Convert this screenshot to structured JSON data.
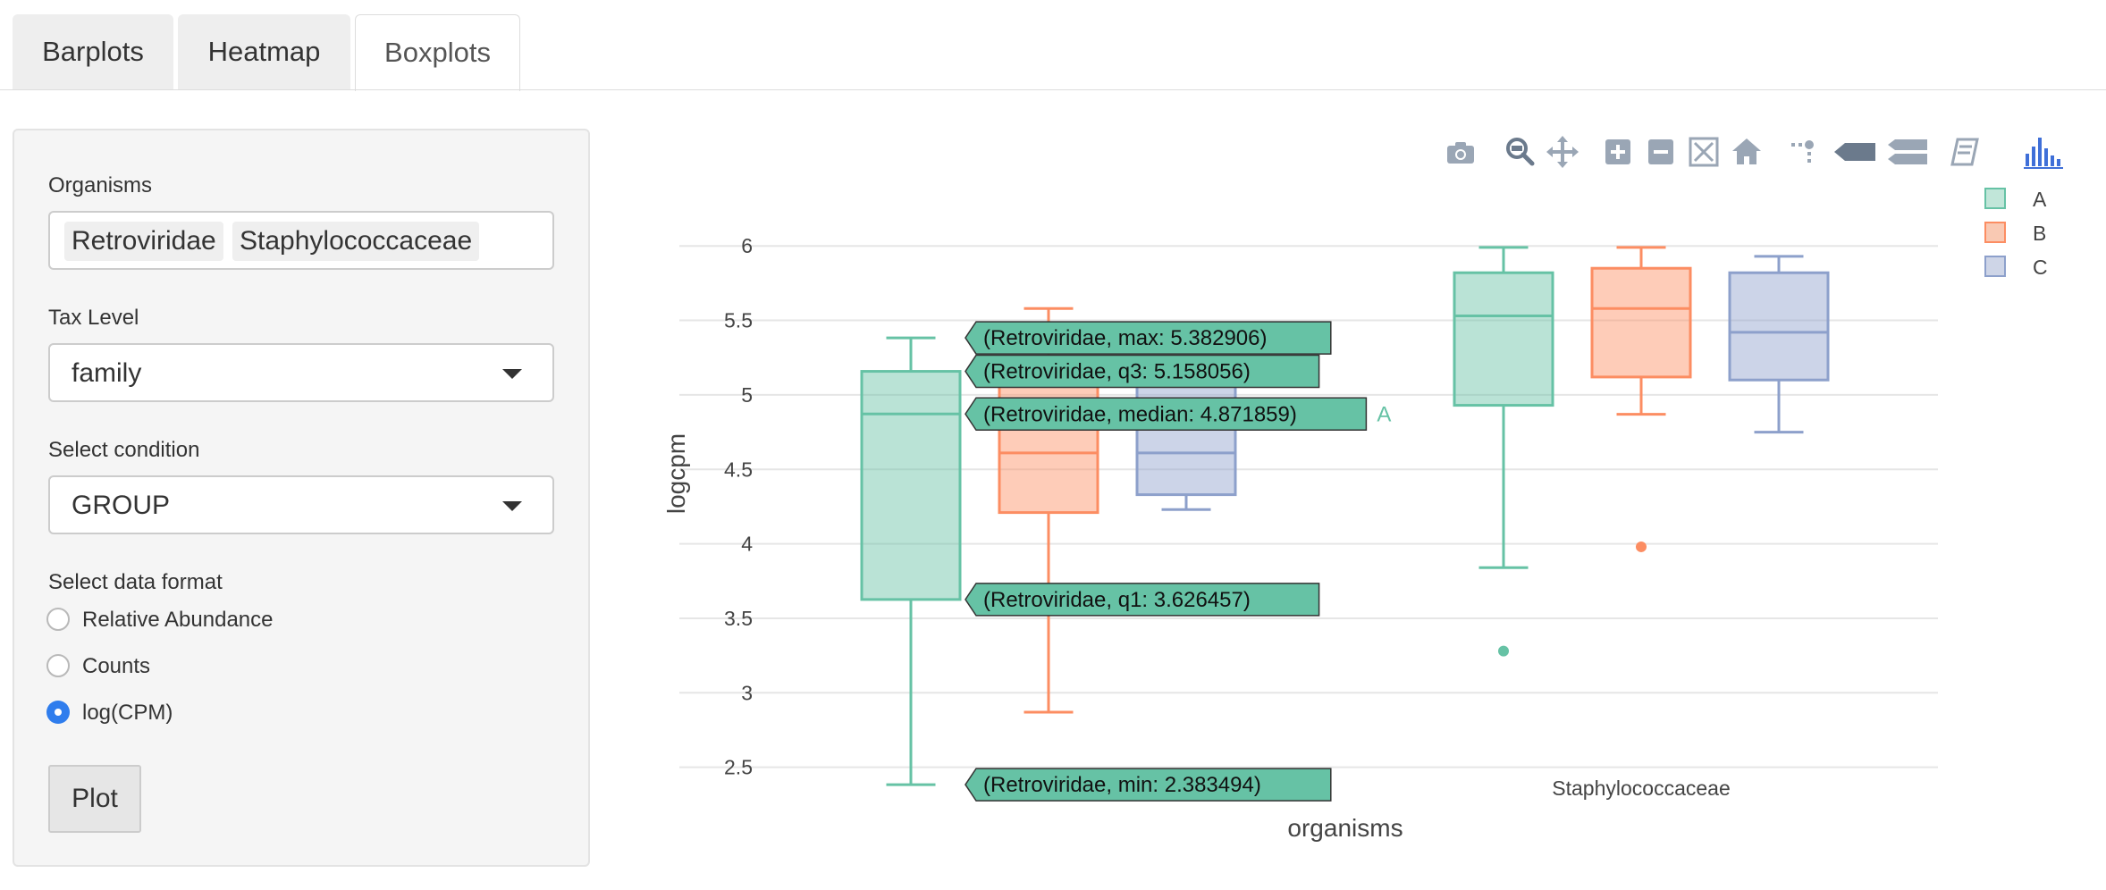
{
  "tabs": [
    {
      "label": "Barplots",
      "active": false
    },
    {
      "label": "Heatmap",
      "active": false
    },
    {
      "label": "Boxplots",
      "active": true
    }
  ],
  "sidebar": {
    "organisms_label": "Organisms",
    "organisms": [
      "Retroviridae",
      "Staphylococcaceae"
    ],
    "tax_level_label": "Tax Level",
    "tax_level_value": "family",
    "condition_label": "Select condition",
    "condition_value": "GROUP",
    "format_label": "Select data format",
    "format_options": [
      {
        "label": "Relative Abundance",
        "checked": false
      },
      {
        "label": "Counts",
        "checked": false
      },
      {
        "label": "log(CPM)",
        "checked": true
      }
    ],
    "plot_button": "Plot"
  },
  "modebar": [
    "camera-icon",
    "zoom-icon",
    "pan-icon",
    "zoom-in-icon",
    "zoom-out-icon",
    "autoscale-icon",
    "home-icon",
    "spike-lines-icon",
    "hover-closest-icon",
    "hover-compare-icon",
    "edit-chart-icon",
    "plotly-logo-icon"
  ],
  "legend": [
    {
      "name": "A",
      "color": "#66c2a5"
    },
    {
      "name": "B",
      "color": "#fc8d62"
    },
    {
      "name": "C",
      "color": "#8da0cb"
    }
  ],
  "hover": {
    "labels": [
      {
        "text": "(Retroviridae, max: 5.382906)",
        "y": 5.382906
      },
      {
        "text": "(Retroviridae, q3: 5.158056)",
        "y": 5.158056
      },
      {
        "text": "(Retroviridae, median: 4.871859)",
        "y": 4.871859
      },
      {
        "text": "(Retroviridae, q1: 3.626457)",
        "y": 3.626457
      },
      {
        "text": "(Retroviridae, min: 2.383494)",
        "y": 2.383494
      }
    ],
    "trace_name": "A",
    "fill_color": "#66c2a5"
  },
  "chart_data": {
    "type": "box",
    "xlabel": "organisms",
    "ylabel": "logcpm",
    "ylim": [
      2.3,
      6.1
    ],
    "yticks": [
      2.5,
      3,
      3.5,
      4,
      4.5,
      5,
      5.5,
      6
    ],
    "grid": true,
    "legend_position": "top-right",
    "categories": [
      "Retroviridae",
      "Staphylococcaceae"
    ],
    "series": [
      {
        "name": "A",
        "color": "#66c2a5",
        "boxes": [
          {
            "min": 2.383494,
            "q1": 3.626457,
            "median": 4.871859,
            "q3": 5.158056,
            "max": 5.382906,
            "outliers": []
          },
          {
            "min": 3.84,
            "q1": 4.93,
            "median": 5.53,
            "q3": 5.82,
            "max": 5.99,
            "outliers": [
              3.28
            ]
          }
        ]
      },
      {
        "name": "B",
        "color": "#fc8d62",
        "boxes": [
          {
            "min": 2.87,
            "q1": 4.21,
            "median": 4.61,
            "q3": 5.06,
            "max": 5.58,
            "outliers": []
          },
          {
            "min": 4.87,
            "q1": 5.12,
            "median": 5.58,
            "q3": 5.85,
            "max": 5.99,
            "outliers": [
              3.98
            ]
          }
        ]
      },
      {
        "name": "C",
        "color": "#8da0cb",
        "boxes": [
          {
            "min": 4.23,
            "q1": 4.33,
            "median": 4.61,
            "q3": 5.06,
            "max": 5.15,
            "outliers": []
          },
          {
            "min": 4.75,
            "q1": 5.1,
            "median": 5.42,
            "q3": 5.82,
            "max": 5.93,
            "outliers": []
          }
        ]
      }
    ]
  }
}
